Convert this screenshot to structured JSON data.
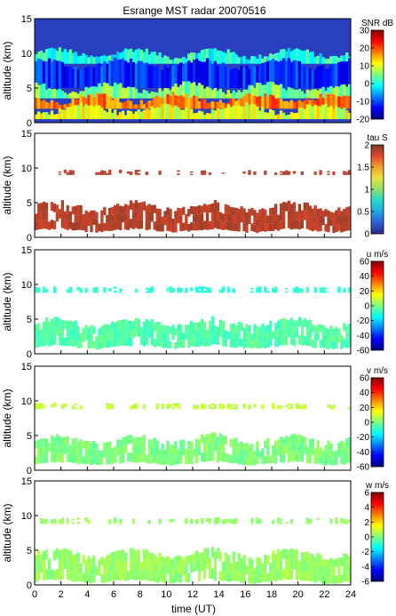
{
  "chart_data": {
    "type": "heatmap",
    "title": "Esrange MST radar 20070516",
    "xlabel": "time (UT)",
    "xlim": [
      0,
      24
    ],
    "x_ticks": [
      "0",
      "2",
      "4",
      "6",
      "8",
      "10",
      "12",
      "14",
      "16",
      "18",
      "20",
      "22",
      "24"
    ],
    "panels": [
      {
        "id": "snr",
        "ylabel": "altitude (km)",
        "ylim": [
          0,
          15
        ],
        "y_ticks": [
          "0",
          "5",
          "10",
          "15"
        ],
        "colorbar_label": "SNR dB",
        "colorbar_range": [
          -20,
          30
        ],
        "colorbar_ticks": [
          "30",
          "20",
          "10",
          "0",
          "-10",
          "-20"
        ],
        "background_color": "#2a3fbf",
        "layers": [
          {
            "alt_low": 8.5,
            "alt_high": 10.0,
            "value": 0
          },
          {
            "alt_low": 5.0,
            "alt_high": 8.5,
            "value": -12
          },
          {
            "alt_low": 3.5,
            "alt_high": 5.0,
            "value": 5
          },
          {
            "alt_low": 2.0,
            "alt_high": 3.5,
            "value": 18
          },
          {
            "alt_low": 0.5,
            "alt_high": 2.0,
            "value": 10
          }
        ]
      },
      {
        "id": "tau",
        "ylabel": "altitude (km)",
        "ylim": [
          0,
          15
        ],
        "y_ticks": [
          "0",
          "5",
          "10",
          "15"
        ],
        "colorbar_label": "tau S",
        "colorbar_range": [
          0,
          2
        ],
        "colorbar_ticks": [
          "2",
          "1.5",
          "1",
          "0.5",
          "0"
        ],
        "layers": [
          {
            "alt_low": 1.0,
            "alt_high": 4.5,
            "value": 1.85
          },
          {
            "alt_low": 9.0,
            "alt_high": 9.6,
            "value": 1.85
          }
        ]
      },
      {
        "id": "u",
        "ylabel": "altitude (km)",
        "ylim": [
          0,
          15
        ],
        "y_ticks": [
          "0",
          "5",
          "10",
          "15"
        ],
        "colorbar_label": "u m/s",
        "colorbar_range": [
          -60,
          60
        ],
        "colorbar_ticks": [
          "60",
          "40",
          "20",
          "0",
          "-20",
          "-40",
          "-60"
        ],
        "layers": [
          {
            "alt_low": 1.0,
            "alt_high": 4.5,
            "value": -5
          },
          {
            "alt_low": 8.8,
            "alt_high": 9.6,
            "value": -10
          }
        ]
      },
      {
        "id": "v",
        "ylabel": "altitude (km)",
        "ylim": [
          0,
          15
        ],
        "y_ticks": [
          "0",
          "5",
          "10",
          "15"
        ],
        "colorbar_label": "v m/s",
        "colorbar_range": [
          -60,
          60
        ],
        "colorbar_ticks": [
          "60",
          "40",
          "20",
          "0",
          "-20",
          "-40",
          "-60"
        ],
        "layers": [
          {
            "alt_low": 1.0,
            "alt_high": 4.5,
            "value": 0
          },
          {
            "alt_low": 8.8,
            "alt_high": 9.6,
            "value": 8
          }
        ]
      },
      {
        "id": "w",
        "ylabel": "altitude (km)",
        "ylim": [
          0,
          15
        ],
        "y_ticks": [
          "0",
          "5",
          "10",
          "15"
        ],
        "colorbar_label": "w m/s",
        "colorbar_range": [
          -6,
          6
        ],
        "colorbar_ticks": [
          "6",
          "4",
          "2",
          "0",
          "-2",
          "-4",
          "-6"
        ],
        "layers": [
          {
            "alt_low": 0.5,
            "alt_high": 4.5,
            "value": 0.3
          },
          {
            "alt_low": 8.8,
            "alt_high": 9.6,
            "value": 0.3
          }
        ]
      }
    ]
  }
}
